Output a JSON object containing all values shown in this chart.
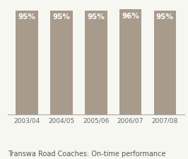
{
  "categories": [
    "2003/04",
    "2004/05",
    "2005/06",
    "2006/07",
    "2007/08"
  ],
  "values": [
    95,
    95,
    95,
    96,
    95
  ],
  "bar_color": "#a89b8c",
  "bar_labels": [
    "95%",
    "95%",
    "95%",
    "96%",
    "95%"
  ],
  "label_color": "#ffffff",
  "label_fontsize": 7.5,
  "xlabel": "",
  "ylabel": "",
  "title": "Transwa Road Coaches: On-time performance",
  "title_fontsize": 7.0,
  "tick_fontsize": 6.5,
  "ylim": [
    0,
    100
  ],
  "background_color": "#f7f7f2",
  "bar_width": 0.65,
  "title_color": "#555555",
  "tick_color": "#666666",
  "spine_color": "#aaaaaa"
}
